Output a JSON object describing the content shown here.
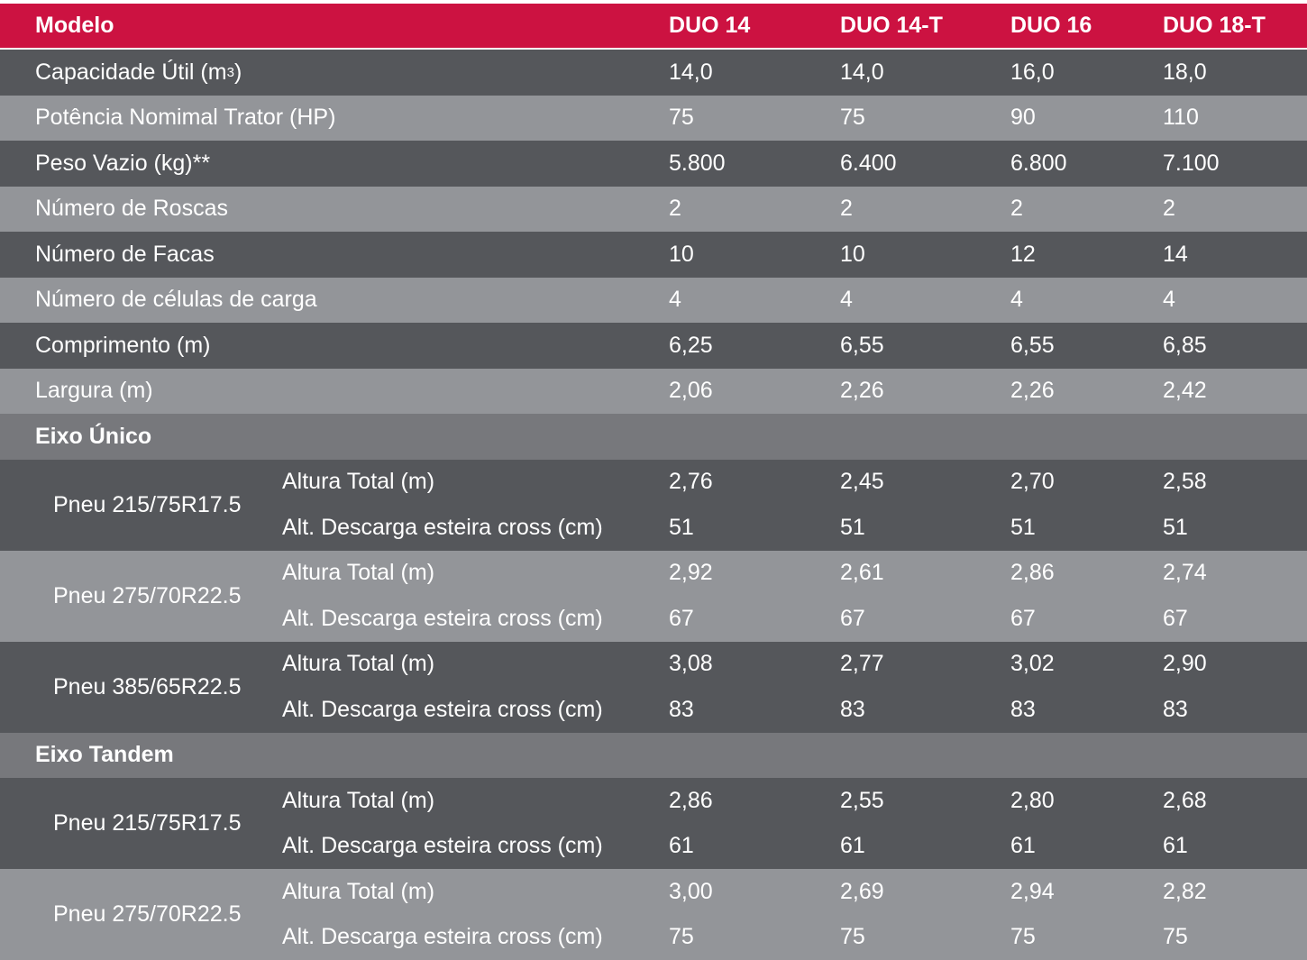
{
  "header": {
    "label": "Modelo",
    "models": [
      "DUO 14",
      "DUO 14-T",
      "DUO 16",
      "DUO 18-T"
    ]
  },
  "colors": {
    "header": "#cc1241",
    "dark_row": "#55575b",
    "light_row": "#939599",
    "section_row": "#77787c",
    "text": "#ffffff"
  },
  "rows": [
    {
      "label": "Capacidade Útil (m",
      "sup": "3",
      "label_suffix": ")",
      "values": [
        "14,0",
        "14,0",
        "16,0",
        "18,0"
      ]
    },
    {
      "label": "Potência Nomimal Trator (HP)",
      "values": [
        "75",
        "75",
        "90",
        "110"
      ]
    },
    {
      "label": "Peso Vazio (kg)**",
      "values": [
        "5.800",
        "6.400",
        "6.800",
        "7.100"
      ]
    },
    {
      "label": "Número de Roscas",
      "values": [
        "2",
        "2",
        "2",
        "2"
      ]
    },
    {
      "label": "Número de Facas",
      "values": [
        "10",
        "10",
        "12",
        "14"
      ]
    },
    {
      "label": "Número de células de carga",
      "values": [
        "4",
        "4",
        "4",
        "4"
      ]
    },
    {
      "label": "Comprimento (m)",
      "values": [
        "6,25",
        "6,55",
        "6,55",
        "6,85"
      ]
    },
    {
      "label": "Largura (m)",
      "values": [
        "2,06",
        "2,26",
        "2,26",
        "2,42"
      ]
    }
  ],
  "sections": [
    {
      "title": "Eixo Único",
      "groups": [
        {
          "tyre": "Pneu 215/75R17.5",
          "subrows": [
            {
              "label": "Altura Total (m)",
              "values": [
                "2,76",
                "2,45",
                "2,70",
                "2,58"
              ]
            },
            {
              "label": "Alt. Descarga esteira cross (cm)",
              "values": [
                "51",
                "51",
                "51",
                "51"
              ]
            }
          ]
        },
        {
          "tyre": "Pneu 275/70R22.5",
          "subrows": [
            {
              "label": "Altura Total (m)",
              "values": [
                "2,92",
                "2,61",
                "2,86",
                "2,74"
              ]
            },
            {
              "label": "Alt. Descarga esteira cross (cm)",
              "values": [
                "67",
                "67",
                "67",
                "67"
              ]
            }
          ]
        },
        {
          "tyre": "Pneu 385/65R22.5",
          "subrows": [
            {
              "label": "Altura Total (m)",
              "values": [
                "3,08",
                "2,77",
                "3,02",
                "2,90"
              ]
            },
            {
              "label": "Alt. Descarga esteira cross (cm)",
              "values": [
                "83",
                "83",
                "83",
                "83"
              ]
            }
          ]
        }
      ]
    },
    {
      "title": "Eixo Tandem",
      "groups": [
        {
          "tyre": "Pneu 215/75R17.5",
          "subrows": [
            {
              "label": "Altura Total (m)",
              "values": [
                "2,86",
                "2,55",
                "2,80",
                "2,68"
              ]
            },
            {
              "label": "Alt. Descarga esteira cross (cm)",
              "values": [
                "61",
                "61",
                "61",
                "61"
              ]
            }
          ]
        },
        {
          "tyre": "Pneu 275/70R22.5",
          "subrows": [
            {
              "label": "Altura Total (m)",
              "values": [
                "3,00",
                "2,69",
                "2,94",
                "2,82"
              ]
            },
            {
              "label": "Alt. Descarga esteira cross (cm)",
              "values": [
                "75",
                "75",
                "75",
                "75"
              ]
            }
          ]
        }
      ]
    }
  ]
}
